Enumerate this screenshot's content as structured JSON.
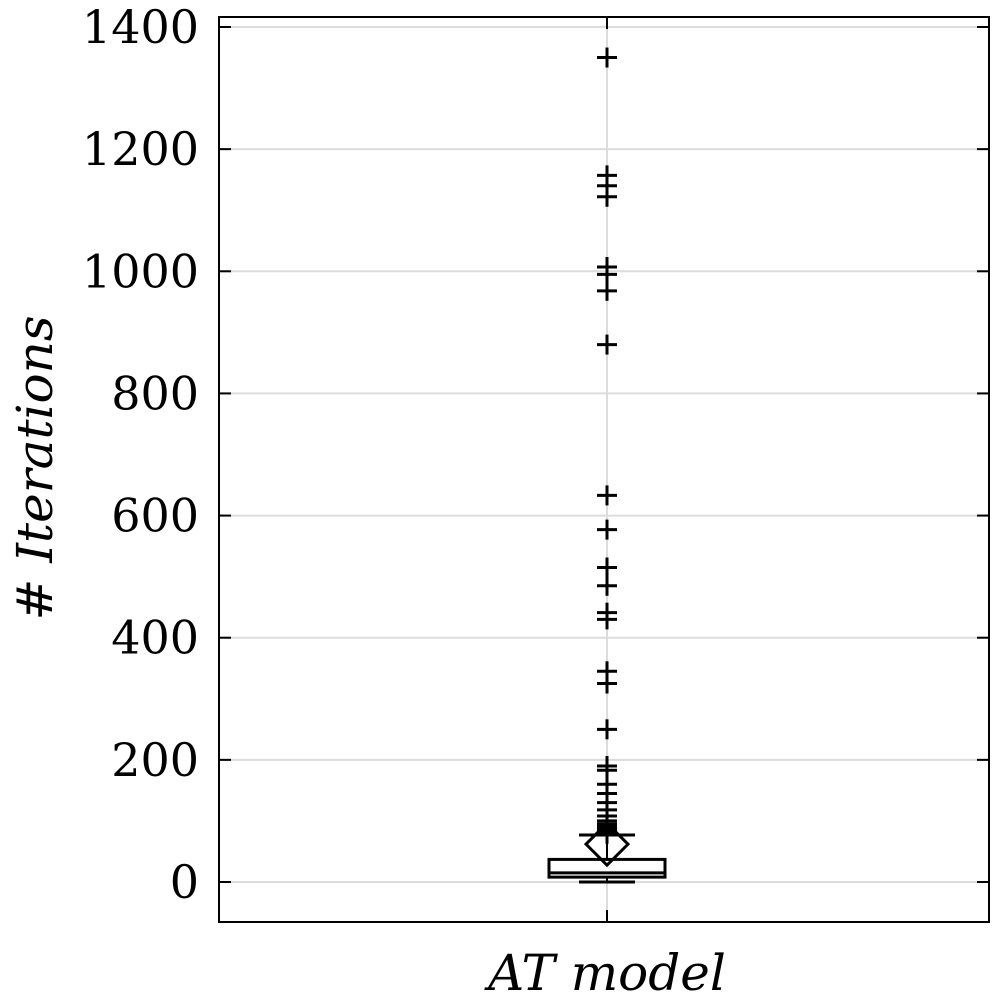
{
  "chart_data": {
    "type": "boxplot",
    "categories": [
      "AT model"
    ],
    "xlabel": "AT model",
    "ylabel": "# Iterations",
    "ylim": [
      -65,
      1410
    ],
    "yticks": [
      0,
      200,
      400,
      600,
      800,
      1000,
      1200,
      1400
    ],
    "grid": true,
    "box": {
      "whisker_low": 0,
      "q1": 8,
      "median": 15,
      "q3": 37,
      "whisker_high": 77,
      "mean": 62
    },
    "outliers": [
      1350,
      1157,
      1140,
      1122,
      1007,
      995,
      968,
      880,
      633,
      577,
      515,
      485,
      441,
      430,
      345,
      325,
      250,
      190,
      183,
      160,
      145,
      130,
      118,
      108,
      100,
      95,
      90,
      86,
      82,
      79
    ]
  }
}
